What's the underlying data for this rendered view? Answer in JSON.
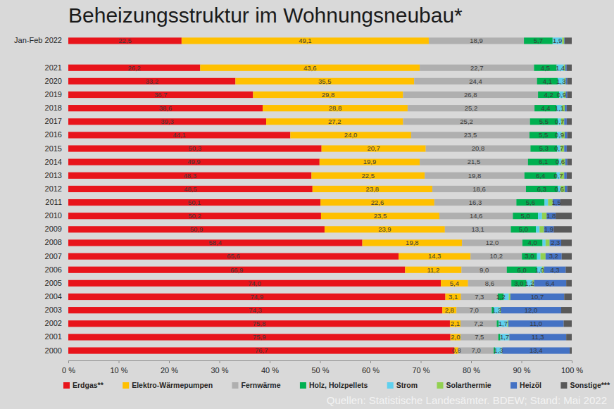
{
  "chart_data": {
    "type": "bar",
    "orientation": "horizontal",
    "stacked": true,
    "data_labels": true,
    "grid": false,
    "legend": "bottom",
    "title": "Beheizungsstruktur im Wohnungsneubau*",
    "annotations": [
      "Quellen: Statistische Landesämter. BDEW; Stand: Mai 2022"
    ],
    "categories": [
      "Jan-Feb 2022",
      null,
      "2021",
      "2020",
      "2019",
      "2018",
      "2017",
      "2016",
      "2015",
      "2014",
      "2013",
      "2012",
      "2011",
      "2010",
      "2009",
      "2008",
      "2007",
      "2006",
      "2005",
      "2004",
      "2003",
      "2002",
      "2001",
      "2000"
    ],
    "xlim": [
      0,
      100
    ],
    "xticks": [
      {
        "value": 0,
        "label": "0 %"
      },
      {
        "value": 10,
        "label": "10 %"
      },
      {
        "value": 20,
        "label": "20 %"
      },
      {
        "value": 30,
        "label": "30 %"
      },
      {
        "value": 40,
        "label": "40 %"
      },
      {
        "value": 50,
        "label": "50 %"
      },
      {
        "value": 60,
        "label": "60 %"
      },
      {
        "value": 70,
        "label": "70 %"
      },
      {
        "value": 80,
        "label": "80 %"
      },
      {
        "value": 90,
        "label": "90 %"
      },
      {
        "value": 100,
        "label": "100 %"
      }
    ],
    "series": [
      {
        "name": "Erdgas**",
        "color": "#e8141b",
        "values": [
          22.5,
          null,
          26.2,
          33.2,
          36.7,
          38.6,
          39.3,
          44.1,
          50.3,
          49.9,
          48.3,
          48.5,
          50.1,
          50.2,
          50.9,
          58.4,
          65.6,
          66.9,
          74.0,
          74.9,
          74.3,
          75.8,
          75.9,
          76.7
        ],
        "value_labels": [
          "22,5",
          null,
          "26,2",
          "33,2",
          "36,7",
          "38,6",
          "39,3",
          "44,1",
          "50,3",
          "49,9",
          "48,3",
          "48,5",
          "50,1",
          "50,2",
          "50,9",
          "58,4",
          "65,6",
          "66,9",
          "74,0",
          "74,9",
          "74,3",
          "75,8",
          "75,9",
          "76,7"
        ]
      },
      {
        "name": "Elektro-Wärmepumpen",
        "color": "#ffc000",
        "values": [
          49.1,
          null,
          43.6,
          35.5,
          29.8,
          28.8,
          27.2,
          24.0,
          20.7,
          19.9,
          22.5,
          23.8,
          22.6,
          23.5,
          23.9,
          19.8,
          14.3,
          11.2,
          5.4,
          3.1,
          2.8,
          2.1,
          2.0,
          0.8
        ],
        "value_labels": [
          "49,1",
          null,
          "43,6",
          "35,5",
          "29,8",
          "28,8",
          "27,2",
          "24,0",
          "20,7",
          "19,9",
          "22,5",
          "23,8",
          "22,6",
          "23,5",
          "23,9",
          "19,8",
          "14,3",
          "11,2",
          "5,4",
          "3,1",
          "2,8",
          "2,1",
          "2,0",
          "0,8"
        ]
      },
      {
        "name": "Fernwärme",
        "color": "#afafaf",
        "values": [
          18.9,
          null,
          22.7,
          24.4,
          26.8,
          25.2,
          25.2,
          23.5,
          20.8,
          21.5,
          19.8,
          18.6,
          16.3,
          14.6,
          13.1,
          12.0,
          10.2,
          9.0,
          8.6,
          7.3,
          7.0,
          7.2,
          7.5,
          7.0
        ],
        "value_labels": [
          "18,9",
          null,
          "22,7",
          "24,4",
          "26,8",
          "25,2",
          "25,2",
          "23,5",
          "20,8",
          "21,5",
          "19,8",
          "18,6",
          "16,3",
          "14,6",
          "13,1",
          "12,0",
          "10,2",
          "9,0",
          "8,6",
          "7,3",
          "7,0",
          "7,2",
          "7,5",
          "7,0"
        ]
      },
      {
        "name": "Holz, Holzpellets",
        "color": "#00b050",
        "values": [
          5.7,
          null,
          4.5,
          4.1,
          4.2,
          4.4,
          5.5,
          5.5,
          5.3,
          6.1,
          6.4,
          6.3,
          5.6,
          5.0,
          5.0,
          4.0,
          3.0,
          6.0,
          3.0,
          1.2,
          0.4,
          0.4,
          0.4,
          0.3
        ],
        "value_labels": [
          "5,7",
          null,
          "4,5",
          "4,1",
          "4,2",
          "4,4",
          "5,5",
          "5,5",
          "5,3",
          "6,1",
          "6,4",
          "6,3",
          "5,6",
          "5,0",
          "5,0",
          "4,0",
          "3,0",
          "6,0",
          "3,0",
          "1,2",
          null,
          null,
          null,
          null
        ]
      },
      {
        "name": "Strom",
        "color": "#5fd0ee",
        "values": [
          1.9,
          null,
          1.4,
          1.3,
          0.9,
          1.1,
          0.7,
          0.9,
          0.7,
          0.6,
          0.7,
          0.6,
          0.7,
          0.8,
          0.7,
          0.6,
          0.7,
          1.0,
          1.2,
          1.0,
          1.2,
          1.7,
          1.7,
          1.3
        ],
        "value_labels": [
          "1,9",
          null,
          "1,4",
          "1,3",
          "0,9",
          "1,1",
          "0,7",
          "0,9",
          "0,7",
          "0,6",
          "0,7",
          "0,6",
          null,
          null,
          null,
          null,
          null,
          "1,0",
          "1,2",
          null,
          "1,2",
          "1,7",
          "1,7",
          "1,3"
        ]
      },
      {
        "name": "Solarthermie",
        "color": "#92d050",
        "values": [
          0.4,
          null,
          0.3,
          0.3,
          0.4,
          0.5,
          0.6,
          0.6,
          0.7,
          0.7,
          0.8,
          0.8,
          0.9,
          0.9,
          0.9,
          0.8,
          1.0,
          0.4,
          0.3,
          0.3,
          0.2,
          0.2,
          0.1,
          0.1
        ]
      },
      {
        "name": "Heizöl",
        "color": "#4472c4",
        "values": [
          0.1,
          null,
          0.3,
          0.3,
          0.3,
          0.4,
          0.5,
          0.5,
          0.5,
          0.4,
          0.5,
          0.5,
          1.5,
          1.8,
          1.9,
          2.3,
          3.2,
          4.3,
          6.4,
          10.7,
          12.0,
          11.0,
          11.3,
          13.4
        ],
        "value_labels": [
          null,
          null,
          null,
          null,
          null,
          null,
          null,
          null,
          null,
          null,
          null,
          null,
          "1,5",
          "1,8",
          "1,9",
          "2,3",
          "3,2",
          "4,3",
          "6,4",
          "10,7",
          "12,0",
          "11,0",
          "11,3",
          "13,4"
        ]
      },
      {
        "name": "Sonstige***",
        "color": "#595959",
        "values": [
          1.4,
          null,
          1.0,
          0.9,
          0.9,
          1.0,
          1.0,
          0.9,
          1.0,
          0.9,
          1.0,
          0.9,
          2.3,
          3.2,
          3.6,
          2.1,
          2.0,
          1.2,
          1.1,
          1.5,
          2.1,
          1.6,
          1.1,
          0.4
        ]
      }
    ]
  }
}
